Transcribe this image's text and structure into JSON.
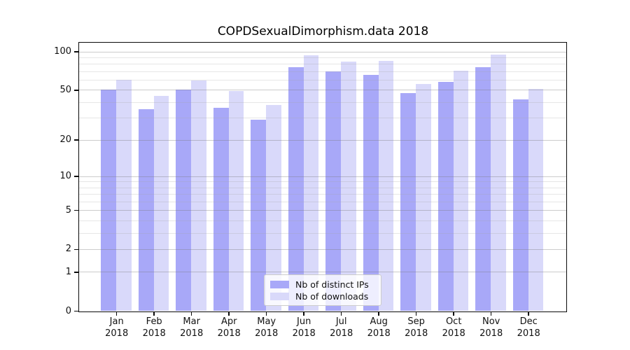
{
  "chart_data": {
    "type": "bar",
    "title": "COPDSexualDimorphism.data 2018",
    "x_tick_labels": [
      {
        "month": "Jan",
        "year": "2018"
      },
      {
        "month": "Feb",
        "year": "2018"
      },
      {
        "month": "Mar",
        "year": "2018"
      },
      {
        "month": "Apr",
        "year": "2018"
      },
      {
        "month": "May",
        "year": "2018"
      },
      {
        "month": "Jun",
        "year": "2018"
      },
      {
        "month": "Jul",
        "year": "2018"
      },
      {
        "month": "Aug",
        "year": "2018"
      },
      {
        "month": "Sep",
        "year": "2018"
      },
      {
        "month": "Oct",
        "year": "2018"
      },
      {
        "month": "Nov",
        "year": "2018"
      },
      {
        "month": "Dec",
        "year": "2018"
      }
    ],
    "series": [
      {
        "name": "Nb of distinct IPs",
        "color": "#a8a8f8",
        "values": [
          50,
          35,
          50,
          36,
          29,
          75,
          70,
          66,
          47,
          58,
          75,
          42
        ]
      },
      {
        "name": "Nb of downloads",
        "color": "#d9d9fa",
        "values": [
          60,
          45,
          59,
          49,
          38,
          93,
          83,
          85,
          56,
          71,
          95,
          51
        ]
      }
    ],
    "y_scale": "log10(1+x)",
    "y_ticks": [
      0,
      1,
      2,
      5,
      10,
      20,
      50,
      100
    ],
    "y_minor_gridlines": [
      3,
      4,
      6,
      7,
      8,
      9,
      30,
      40,
      60,
      70,
      80,
      90
    ],
    "ylim": [
      0,
      118
    ],
    "grid": "horizontal",
    "legend_position": "lower center inside",
    "colors": {
      "distinct_ips_bar": "#a8a8f8",
      "downloads_bar": "#d9d9fa",
      "grid_major": "#d2d2d2",
      "grid_minor": "#eaeaea",
      "spine": "#0a0a0a",
      "text": "#111111",
      "legend_border": "#cccccc",
      "legend_background": "#ffffff"
    }
  }
}
